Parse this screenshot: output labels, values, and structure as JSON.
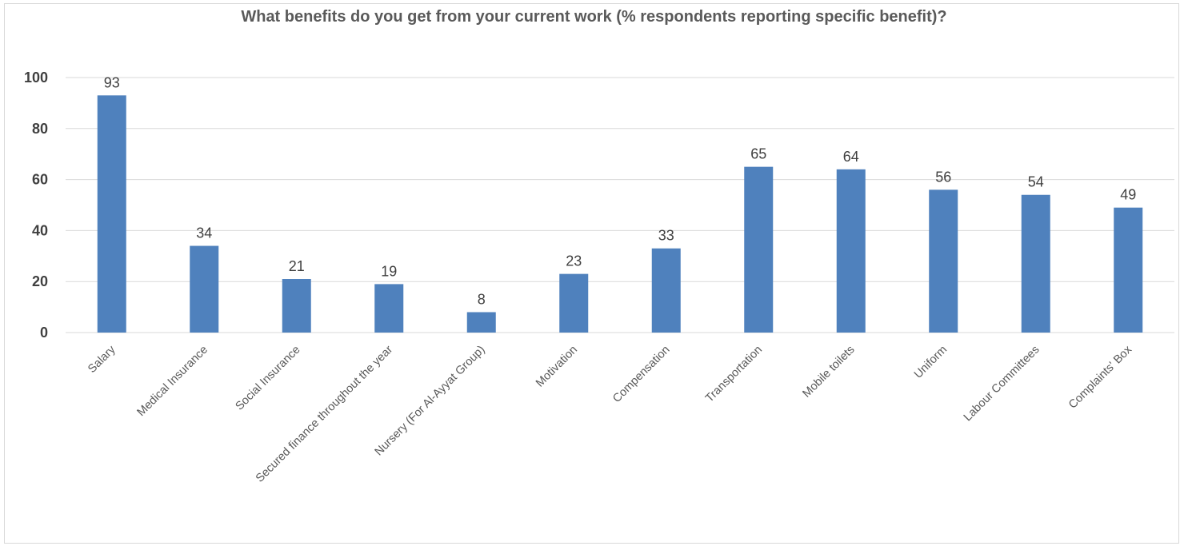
{
  "chart_data": {
    "type": "bar",
    "title": "What benefits do you get from your current work (% respondents reporting specific benefit)?",
    "xlabel": "",
    "ylabel": "",
    "categories": [
      "Salary",
      "Medical Insurance",
      "Social Insurance",
      "Secured finance throughout the year",
      "Nursery (For Al-Ayyat Group)",
      "Motivation",
      "Compensation",
      "Transportation",
      "Mobile toilets",
      "Uniform",
      "Labour Committees",
      "Complaints' Box"
    ],
    "values": [
      93,
      34,
      21,
      19,
      8,
      23,
      33,
      65,
      64,
      56,
      54,
      49
    ],
    "data_labels": [
      "93",
      "34",
      "21",
      "19",
      "8",
      "23",
      "33",
      "65",
      "64",
      "56",
      "54",
      "49"
    ],
    "ylim": [
      0,
      100
    ],
    "yticks": [
      0,
      20,
      40,
      60,
      80,
      100
    ],
    "grid": true,
    "legend": "none",
    "bar_color": "#4f81bd",
    "grid_color": "#d9d9d9"
  }
}
